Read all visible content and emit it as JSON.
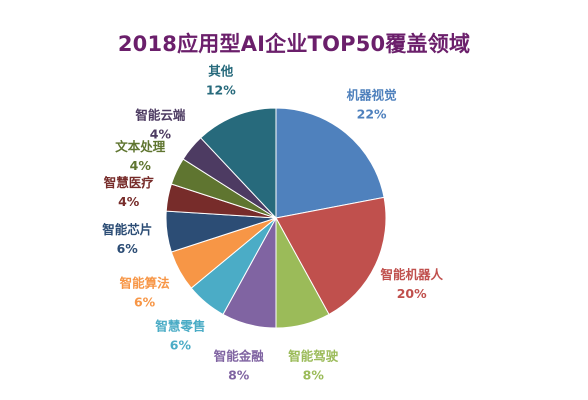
{
  "chart_data": {
    "type": "pie",
    "title": "2018应用型AI企业TOP50覆盖领域",
    "slices": [
      {
        "name": "机器视觉",
        "value": 22,
        "label": "22%",
        "color": "#4f81bd",
        "label_color": "#4f81bd"
      },
      {
        "name": "智能机器人",
        "value": 20,
        "label": "20%",
        "color": "#c0504d",
        "label_color": "#c0504d"
      },
      {
        "name": "智能驾驶",
        "value": 8,
        "label": "8%",
        "color": "#9bbb59",
        "label_color": "#9bbb59"
      },
      {
        "name": "智能金融",
        "value": 8,
        "label": "8%",
        "color": "#8064a2",
        "label_color": "#8064a2"
      },
      {
        "name": "智慧零售",
        "value": 6,
        "label": "6%",
        "color": "#4bacc6",
        "label_color": "#4bacc6"
      },
      {
        "name": "智能算法",
        "value": 6,
        "label": "6%",
        "color": "#f79646",
        "label_color": "#f79646"
      },
      {
        "name": "智能芯片",
        "value": 6,
        "label": "6%",
        "color": "#2c4d75",
        "label_color": "#2c4d75"
      },
      {
        "name": "智慧医疗",
        "value": 4,
        "label": "4%",
        "color": "#772c2a",
        "label_color": "#772c2a"
      },
      {
        "name": "文本处理",
        "value": 4,
        "label": "4%",
        "color": "#5f7530",
        "label_color": "#5f7530"
      },
      {
        "name": "智能云端",
        "value": 4,
        "label": "4%",
        "color": "#4d3b62",
        "label_color": "#4d3b62"
      },
      {
        "name": "其他",
        "value": 12,
        "label": "12%",
        "color": "#276a7c",
        "label_color": "#276a7c"
      }
    ],
    "start_angle_deg": 0,
    "direction": "clockwise",
    "legend": "none"
  }
}
